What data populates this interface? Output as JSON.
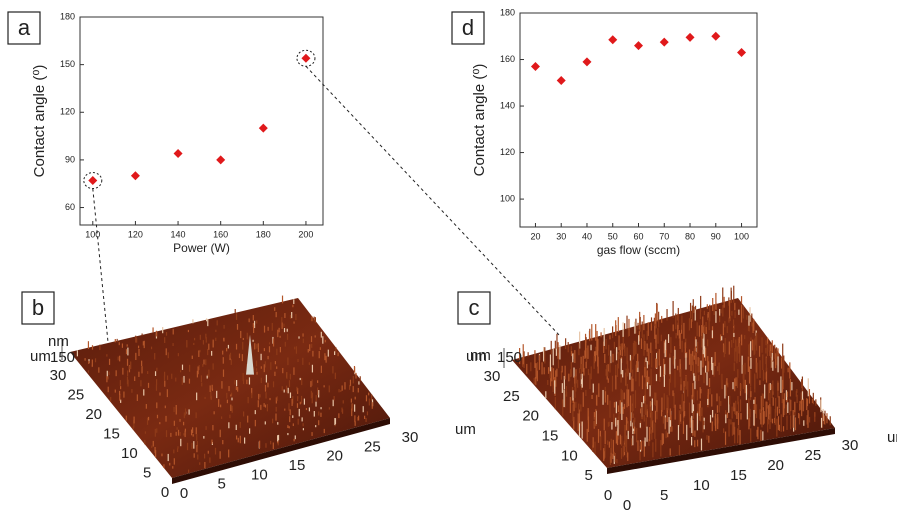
{
  "chart_data": [
    {
      "type": "scatter",
      "x_label": "Power (W)",
      "y_label": "Contact angle (⁰)",
      "x": [
        100,
        120,
        140,
        160,
        180,
        200
      ],
      "values": [
        77,
        80,
        94,
        90,
        110,
        154
      ],
      "color": "#e0191b",
      "xlim": [
        94,
        208
      ],
      "ylim": [
        49,
        180
      ],
      "xticks": [
        100,
        120,
        140,
        160,
        180,
        200
      ],
      "yticks": [
        60,
        90,
        120,
        150,
        180
      ]
    },
    {
      "type": "scatter",
      "x_label": "gas flow (sccm)",
      "y_label": "Contact angle (⁰)",
      "x": [
        20,
        30,
        40,
        50,
        60,
        70,
        80,
        90,
        100
      ],
      "values": [
        157,
        151,
        159,
        168.5,
        166,
        167.5,
        169.5,
        170,
        163
      ],
      "color": "#e0191b",
      "xlim": [
        14,
        106
      ],
      "ylim": [
        88,
        180
      ],
      "xticks": [
        20,
        30,
        40,
        50,
        60,
        70,
        80,
        90,
        100
      ],
      "yticks": [
        100,
        120,
        140,
        160,
        180
      ]
    }
  ],
  "panels": {
    "labels": [
      "a",
      "d",
      "b",
      "c"
    ],
    "afm": [
      {
        "z_unit": "nm",
        "z_tick": "150",
        "axis_unit": "um",
        "ticks": [
          0,
          5,
          10,
          15,
          20,
          25,
          30
        ]
      },
      {
        "z_unit": "nm",
        "z_tick": "150",
        "axis_unit": "um",
        "ticks": [
          0,
          5,
          10,
          15,
          20,
          25,
          30
        ]
      }
    ]
  }
}
